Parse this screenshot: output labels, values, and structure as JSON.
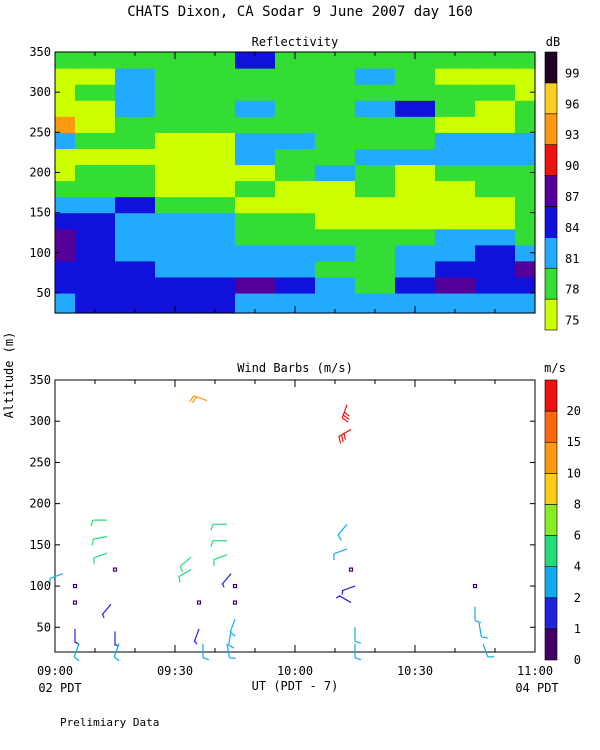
{
  "page": {
    "title": "CHATS Dixon, CA  Sodar   9 June 2007  day 160",
    "footnote": "Prelimiary Data"
  },
  "chart_data": [
    {
      "type": "heatmap",
      "title": "Reflectivity",
      "ylabel": "Altitude (m)",
      "ylim": [
        25,
        350
      ],
      "xlim": [
        "09:00",
        "11:00"
      ],
      "yticks": [
        50,
        100,
        150,
        200,
        250,
        300,
        350
      ],
      "colorbar": {
        "unit": "dB",
        "levels": [
          75,
          78,
          81,
          84,
          87,
          90,
          93,
          96,
          99
        ],
        "colors": [
          "#ccff00",
          "#33dd33",
          "#22aaff",
          "#1111dd",
          "#550099",
          "#ee1111",
          "#ff9911",
          "#ffcc22",
          "#220022"
        ]
      },
      "x_minutes": [
        0,
        10,
        20,
        30,
        40,
        50,
        60,
        70,
        80,
        90,
        100,
        110,
        120
      ],
      "y_levels": [
        40,
        60,
        80,
        100,
        120,
        140,
        160,
        180,
        200,
        220,
        240,
        260,
        280,
        300,
        320,
        340
      ],
      "grid_dB": [
        [
          81,
          84,
          84,
          84,
          84,
          81,
          81,
          81,
          81,
          81,
          81,
          81,
          81
        ],
        [
          84,
          84,
          84,
          84,
          84,
          87,
          84,
          81,
          78,
          84,
          87,
          84,
          84
        ],
        [
          84,
          84,
          84,
          81,
          81,
          81,
          81,
          78,
          78,
          81,
          84,
          84,
          87
        ],
        [
          87,
          84,
          81,
          81,
          81,
          81,
          81,
          81,
          78,
          81,
          81,
          84,
          81
        ],
        [
          87,
          84,
          81,
          81,
          81,
          78,
          78,
          78,
          78,
          78,
          81,
          81,
          78
        ],
        [
          84,
          84,
          81,
          81,
          81,
          78,
          78,
          75,
          75,
          75,
          75,
          75,
          78
        ],
        [
          81,
          81,
          84,
          78,
          78,
          75,
          75,
          75,
          75,
          75,
          75,
          75,
          78
        ],
        [
          78,
          78,
          78,
          75,
          75,
          78,
          75,
          75,
          78,
          75,
          75,
          78,
          78
        ],
        [
          75,
          78,
          78,
          75,
          75,
          75,
          78,
          81,
          78,
          75,
          78,
          78,
          78
        ],
        [
          75,
          75,
          75,
          75,
          75,
          81,
          78,
          78,
          81,
          81,
          81,
          81,
          81
        ],
        [
          81,
          78,
          78,
          75,
          75,
          81,
          81,
          78,
          78,
          78,
          81,
          81,
          81
        ],
        [
          93,
          75,
          78,
          78,
          78,
          78,
          78,
          78,
          78,
          78,
          75,
          75,
          78
        ],
        [
          75,
          75,
          81,
          78,
          78,
          81,
          78,
          78,
          81,
          84,
          78,
          75,
          78
        ],
        [
          75,
          78,
          81,
          78,
          78,
          78,
          78,
          78,
          78,
          78,
          78,
          78,
          75
        ],
        [
          75,
          75,
          81,
          78,
          78,
          78,
          78,
          78,
          81,
          78,
          75,
          75,
          75
        ],
        [
          78,
          78,
          78,
          78,
          78,
          84,
          78,
          78,
          78,
          78,
          78,
          78,
          78
        ]
      ]
    },
    {
      "type": "scatter",
      "title": "Wind Barbs (m/s)",
      "xlabel": "UT  (PDT - 7)",
      "ylabel": "Altitude (m)",
      "ylim": [
        20,
        350
      ],
      "yticks": [
        50,
        100,
        150,
        200,
        250,
        300,
        350
      ],
      "xlim": [
        "09:00",
        "11:00"
      ],
      "xticks": [
        "09:00",
        "09:30",
        "10:00",
        "10:30",
        "11:00"
      ],
      "x_sublabels": {
        "left": "02 PDT",
        "right": "04 PDT"
      },
      "colorbar": {
        "unit": "m/s",
        "levels": [
          0,
          1,
          2,
          4,
          6,
          8,
          10,
          15,
          20
        ],
        "colors": [
          "#440066",
          "#2222dd",
          "#11aaee",
          "#22dd77",
          "#88ee22",
          "#ffcc11",
          "#ff9911",
          "#ff6611",
          "#ee1111"
        ]
      },
      "x_minutes": [
        2,
        8,
        15,
        35,
        43,
        73,
        75,
        105
      ],
      "barbs": [
        {
          "x": 2,
          "y": 115,
          "speed": 2.5,
          "dir": 250
        },
        {
          "x": 5,
          "y": 80,
          "speed": 0.3,
          "dir": 0
        },
        {
          "x": 5,
          "y": 100,
          "speed": 0.3,
          "dir": 0
        },
        {
          "x": 5,
          "y": 48,
          "speed": 1.5,
          "dir": 180
        },
        {
          "x": 6,
          "y": 30,
          "speed": 2.5,
          "dir": 200
        },
        {
          "x": 13,
          "y": 180,
          "speed": 4,
          "dir": 270
        },
        {
          "x": 13,
          "y": 160,
          "speed": 4,
          "dir": 260
        },
        {
          "x": 13,
          "y": 140,
          "speed": 4,
          "dir": 250
        },
        {
          "x": 15,
          "y": 120,
          "speed": 0.3,
          "dir": 0
        },
        {
          "x": 14,
          "y": 78,
          "speed": 1.5,
          "dir": 220
        },
        {
          "x": 15,
          "y": 45,
          "speed": 1,
          "dir": 180
        },
        {
          "x": 16,
          "y": 30,
          "speed": 2.5,
          "dir": 200
        },
        {
          "x": 34,
          "y": 135,
          "speed": 4,
          "dir": 230
        },
        {
          "x": 34,
          "y": 120,
          "speed": 4,
          "dir": 240
        },
        {
          "x": 36,
          "y": 80,
          "speed": 0.3,
          "dir": 0
        },
        {
          "x": 36,
          "y": 48,
          "speed": 1.5,
          "dir": 200
        },
        {
          "x": 37,
          "y": 30,
          "speed": 2.5,
          "dir": 180
        },
        {
          "x": 38,
          "y": 325,
          "speed": 10,
          "dir": 290
        },
        {
          "x": 43,
          "y": 175,
          "speed": 4,
          "dir": 270
        },
        {
          "x": 43,
          "y": 155,
          "speed": 4,
          "dir": 270
        },
        {
          "x": 43,
          "y": 138,
          "speed": 4,
          "dir": 250
        },
        {
          "x": 44,
          "y": 115,
          "speed": 1.5,
          "dir": 220
        },
        {
          "x": 45,
          "y": 100,
          "speed": 0.3,
          "dir": 0
        },
        {
          "x": 45,
          "y": 80,
          "speed": 0.3,
          "dir": 0
        },
        {
          "x": 45,
          "y": 60,
          "speed": 2.5,
          "dir": 200
        },
        {
          "x": 44,
          "y": 45,
          "speed": 2.5,
          "dir": 190
        },
        {
          "x": 43,
          "y": 30,
          "speed": 2.5,
          "dir": 170
        },
        {
          "x": 73,
          "y": 320,
          "speed": 20,
          "dir": 200
        },
        {
          "x": 74,
          "y": 290,
          "speed": 20,
          "dir": 240
        },
        {
          "x": 73,
          "y": 175,
          "speed": 2.5,
          "dir": 220
        },
        {
          "x": 73,
          "y": 145,
          "speed": 2.5,
          "dir": 250
        },
        {
          "x": 74,
          "y": 120,
          "speed": 0.3,
          "dir": 0
        },
        {
          "x": 75,
          "y": 100,
          "speed": 1.5,
          "dir": 250
        },
        {
          "x": 74,
          "y": 80,
          "speed": 1.5,
          "dir": 300
        },
        {
          "x": 75,
          "y": 50,
          "speed": 2.5,
          "dir": 180
        },
        {
          "x": 75,
          "y": 30,
          "speed": 2.5,
          "dir": 180
        },
        {
          "x": 105,
          "y": 100,
          "speed": 0.3,
          "dir": 0
        },
        {
          "x": 105,
          "y": 75,
          "speed": 2.5,
          "dir": 180
        },
        {
          "x": 106,
          "y": 55,
          "speed": 2.5,
          "dir": 170
        },
        {
          "x": 107,
          "y": 30,
          "speed": 2.5,
          "dir": 160
        }
      ]
    }
  ]
}
